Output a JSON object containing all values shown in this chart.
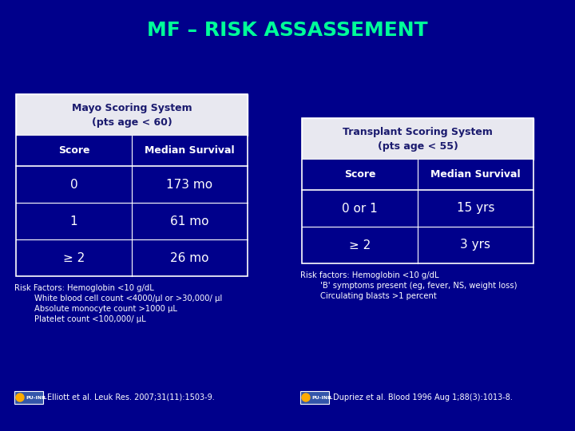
{
  "title": "MF – RISK ASSASSEMENT",
  "title_color": "#00ff99",
  "bg_color": "#00008B",
  "table_bg": "#e8e8f0",
  "table_text_color": "#1a1a6e",
  "white": "#ffffff",
  "left_table": {
    "header": "Mayo Scoring System\n(pts age < 60)",
    "col1": "Score",
    "col2": "Median Survival",
    "rows": [
      [
        "0",
        "173 mo"
      ],
      [
        "1",
        "61 mo"
      ],
      [
        "≥ 2",
        "26 mo"
      ]
    ]
  },
  "right_table": {
    "header": "Transplant Scoring System\n(pts age < 55)",
    "col1": "Score",
    "col2": "Median Survival",
    "rows": [
      [
        "0 or 1",
        "15 yrs"
      ],
      [
        "≥ 2",
        "3 yrs"
      ]
    ]
  },
  "left_risk_line1": "Risk Factors: Hemoglobin <10 g/dL",
  "left_risk_line2": "        White blood cell count <4000/μl or >30,000/ μl",
  "left_risk_line3": "        Absolute monocyte count >1000 μL",
  "left_risk_line4": "        Platelet count <100,000/ μL",
  "right_risk_line1": "Risk factors: Hemoglobin <10 g/dL",
  "right_risk_line2": "        'B' symptoms present (eg, fever, NS, weight loss)",
  "right_risk_line3": "        Circulating blasts >1 percent",
  "left_cite": "Elliott et al. Leuk Res. 2007;31(11):1503-9.",
  "right_cite": "Dupriez et al. Blood 1996 Aug 1;88(3):1013-8.",
  "cite_bg": "#3355aa"
}
